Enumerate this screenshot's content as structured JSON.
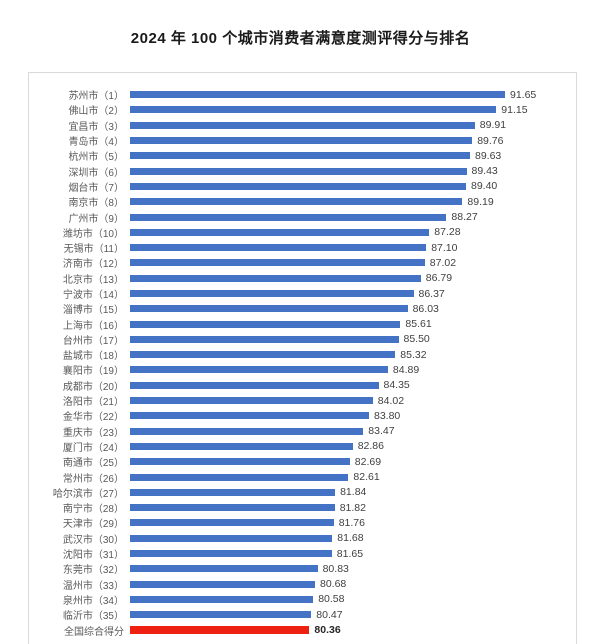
{
  "page": {
    "title": "2024 年 100 个城市消费者满意度测评得分与排名"
  },
  "colors": {
    "bar_blue": "#4472c4",
    "bar_red": "#ee2012",
    "frame_border": "#d9d9d9",
    "category_text": "#595959",
    "value_text": "#404040"
  },
  "chart_data": {
    "type": "bar",
    "orientation": "horizontal",
    "title": "2024 年 100 个城市消费者满意度测评得分与排名",
    "xlabel": "",
    "ylabel": "",
    "axis_min": 70,
    "axis_max": 95,
    "grid": false,
    "legend": false,
    "bar_color": "#4472c4",
    "highlight_color": "#ee2012",
    "highlight_index": 35,
    "categories": [
      "苏州市（1）",
      "佛山市（2）",
      "宜昌市（3）",
      "青岛市（4）",
      "杭州市（5）",
      "深圳市（6）",
      "烟台市（7）",
      "南京市（8）",
      "广州市（9）",
      "潍坊市（10）",
      "无锡市（11）",
      "济南市（12）",
      "北京市（13）",
      "宁波市（14）",
      "淄博市（15）",
      "上海市（16）",
      "台州市（17）",
      "盐城市（18）",
      "襄阳市（19）",
      "成都市（20）",
      "洛阳市（21）",
      "金华市（22）",
      "重庆市（23）",
      "厦门市（24）",
      "南通市（25）",
      "常州市（26）",
      "哈尔滨市（27）",
      "南宁市（28）",
      "天津市（29）",
      "武汉市（30）",
      "沈阳市（31）",
      "东莞市（32）",
      "温州市（33）",
      "泉州市（34）",
      "临沂市（35）",
      "全国综合得分"
    ],
    "values": [
      91.65,
      91.15,
      89.91,
      89.76,
      89.63,
      89.43,
      89.4,
      89.19,
      88.27,
      87.28,
      87.1,
      87.02,
      86.79,
      86.37,
      86.03,
      85.61,
      85.5,
      85.32,
      84.89,
      84.35,
      84.02,
      83.8,
      83.47,
      82.86,
      82.69,
      82.61,
      81.84,
      81.82,
      81.76,
      81.68,
      81.65,
      80.83,
      80.68,
      80.58,
      80.47,
      80.36
    ],
    "value_labels": [
      "91.65",
      "91.15",
      "89.91",
      "89.76",
      "89.63",
      "89.43",
      "89.40",
      "89.19",
      "88.27",
      "87.28",
      "87.10",
      "87.02",
      "86.79",
      "86.37",
      "86.03",
      "85.61",
      "85.50",
      "85.32",
      "84.89",
      "84.35",
      "84.02",
      "83.80",
      "83.47",
      "82.86",
      "82.69",
      "82.61",
      "81.84",
      "81.82",
      "81.76",
      "81.68",
      "81.65",
      "80.83",
      "80.68",
      "80.58",
      "80.47",
      "80.36"
    ]
  }
}
